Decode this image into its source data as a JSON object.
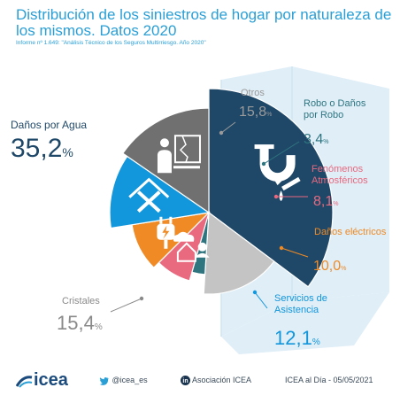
{
  "header": {
    "title": "Distribución de los siniestros de hogar por naturaleza de los mismos. Datos 2020",
    "subtitle": "Informe nº 1.649: \"Análisis Técnico de los Seguros Multirriesgo. Año 2020\""
  },
  "chart_data": {
    "type": "pie",
    "unit": "%",
    "slices": [
      {
        "label": "Daños por Agua",
        "value": 35.2,
        "value_text": "35,2",
        "color": "#1f4868",
        "icon": "pipe-leak-icon"
      },
      {
        "label": "Otros",
        "value": 15.8,
        "value_text": "15,8",
        "color": "#c4c4c4",
        "icon": "none"
      },
      {
        "label": "Robo o Daños por Robo",
        "value": 3.4,
        "value_text": "3,4",
        "color": "#2e7580",
        "icon": "burglar-icon"
      },
      {
        "label": "Fenómenos Atmosféricos",
        "value": 8.1,
        "value_text": "8,1",
        "color": "#e9697f",
        "icon": "storm-house-icon"
      },
      {
        "label": "Daños eléctricos",
        "value": 10.0,
        "value_text": "10,0",
        "color": "#f08a24",
        "icon": "plug-icon"
      },
      {
        "label": "Servicios de Asistencia",
        "value": 12.1,
        "value_text": "12,1",
        "color": "#1296dc",
        "icon": "tools-house-icon"
      },
      {
        "label": "Cristales",
        "value": 15.4,
        "value_text": "15,4",
        "color": "#707070",
        "icon": "broken-window-icon"
      }
    ]
  },
  "footer": {
    "brand": "icea",
    "twitter": "@icea_es",
    "linkedin": "Asociación ICEA",
    "date_line": "ICEA al Día - 05/05/2021"
  }
}
